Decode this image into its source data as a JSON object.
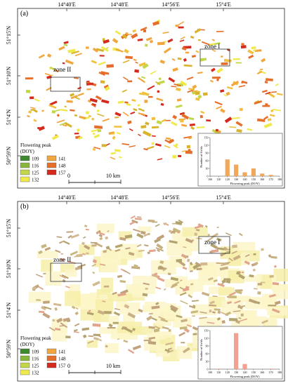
{
  "panels": [
    {
      "letter": "(a)",
      "lon_ticks": [
        "14°40'E",
        "14°48'E",
        "14°56'E",
        "15°4'E"
      ],
      "lat_ticks": [
        "51°15'N",
        "51°10'N",
        "51°4'N",
        "50°59'N"
      ],
      "zones": [
        "zone I",
        "zone II"
      ],
      "legend": {
        "title": "Flowering peak",
        "unit": "(DOY)",
        "classes": [
          {
            "label": "109",
            "color": "#3f8a2e"
          },
          {
            "label": "116",
            "color": "#86b63c"
          },
          {
            "label": "125",
            "color": "#c3d648"
          },
          {
            "label": "132",
            "color": "#efe94b"
          },
          {
            "label": "141",
            "color": "#f1a73f"
          },
          {
            "label": "148",
            "color": "#e56e2a"
          },
          {
            "label": "157",
            "color": "#d42b1e"
          }
        ]
      },
      "scalebar": {
        "start": "0",
        "end": "10 km"
      },
      "chart_data": {
        "type": "bar",
        "x": [
          120,
          130,
          140,
          150,
          160,
          170
        ],
        "values": [
          65,
          45,
          15,
          30,
          10,
          5
        ],
        "xlim": [
          100,
          180
        ],
        "ylim": [
          0,
          150
        ],
        "x_ticks": [
          "100",
          "110",
          "120",
          "130",
          "140",
          "150",
          "160",
          "170",
          "180"
        ],
        "y_ticks": [
          "0",
          "30",
          "60",
          "90",
          "120",
          "150"
        ],
        "xlabel": "Flowering peak (DOY)",
        "ylabel": "Number of fields",
        "bar_color": "#f2a85a"
      }
    },
    {
      "letter": "(b)",
      "lon_ticks": [
        "14°40'E",
        "14°48'E",
        "14°56'E",
        "15°4'E"
      ],
      "lat_ticks": [
        "51°15'N",
        "51°10'N",
        "51°4'N",
        "50°59'N"
      ],
      "zones": [
        "zone I",
        "zone II"
      ],
      "legend": {
        "title": "Flowering peak",
        "unit": "(DOY)",
        "classes": [
          {
            "label": "109",
            "color": "#3f8a2e"
          },
          {
            "label": "116",
            "color": "#86b63c"
          },
          {
            "label": "125",
            "color": "#c3d648"
          },
          {
            "label": "132",
            "color": "#efe94b"
          },
          {
            "label": "141",
            "color": "#f1a73f"
          },
          {
            "label": "148",
            "color": "#e56e2a"
          },
          {
            "label": "157",
            "color": "#d42b1e"
          }
        ]
      },
      "scalebar": {
        "start": "0",
        "end": "10 km"
      },
      "chart_data": {
        "type": "bar",
        "x": [
          110,
          130,
          140,
          170
        ],
        "values": [
          2,
          140,
          20,
          2
        ],
        "xlim": [
          100,
          180
        ],
        "ylim": [
          0,
          150
        ],
        "x_ticks": [
          "100",
          "110",
          "120",
          "130",
          "140",
          "150",
          "160",
          "170",
          "180"
        ],
        "y_ticks": [
          "0",
          "30",
          "60",
          "90",
          "120",
          "150"
        ],
        "xlabel": "Flowering peak (DOY)",
        "ylabel": "Number of fields",
        "bar_color": "#f2a090"
      }
    }
  ]
}
